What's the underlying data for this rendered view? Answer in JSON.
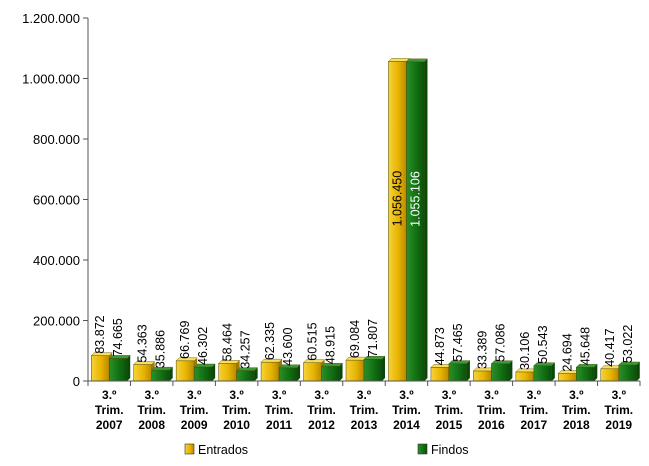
{
  "chart_data": {
    "type": "bar",
    "categories": [
      [
        "3.º",
        "Trim.",
        "2007"
      ],
      [
        "3.º",
        "Trim.",
        "2008"
      ],
      [
        "3.º",
        "Trim.",
        "2009"
      ],
      [
        "3.º",
        "Trim.",
        "2010"
      ],
      [
        "3.º",
        "Trim.",
        "2011"
      ],
      [
        "3.º",
        "Trim.",
        "2012"
      ],
      [
        "3.º",
        "Trim.",
        "2013"
      ],
      [
        "3.º",
        "Trim.",
        "2014"
      ],
      [
        "3.º",
        "Trim.",
        "2015"
      ],
      [
        "3.º",
        "Trim.",
        "2016"
      ],
      [
        "3.º",
        "Trim.",
        "2017"
      ],
      [
        "3.º",
        "Trim.",
        "2018"
      ],
      [
        "3.º",
        "Trim.",
        "2019"
      ]
    ],
    "series": [
      {
        "name": "Entrados",
        "color": "#e8b400",
        "values": [
          83872,
          54363,
          66769,
          58464,
          62335,
          60515,
          69084,
          1056450,
          44873,
          33389,
          30106,
          24694,
          40417
        ],
        "labels": [
          "83.872",
          "54.363",
          "66.769",
          "58.464",
          "62.335",
          "60.515",
          "69.084",
          "1.056.450",
          "44.873",
          "33.389",
          "30.106",
          "24.694",
          "40.417"
        ]
      },
      {
        "name": "Findos",
        "color": "#127012",
        "values": [
          74665,
          35886,
          46302,
          34257,
          43600,
          48915,
          71807,
          1055106,
          57465,
          57086,
          50543,
          45648,
          53022
        ],
        "labels": [
          "74.665",
          "35.886",
          "46.302",
          "34.257",
          "43.600",
          "48.915",
          "71.807",
          "1.055.106",
          "57.465",
          "57.086",
          "50.543",
          "45.648",
          "53.022"
        ]
      }
    ],
    "ylim": [
      0,
      1200000
    ],
    "y_ticks": [
      0,
      200000,
      400000,
      600000,
      800000,
      1000000,
      1200000
    ],
    "y_tick_labels": [
      "0",
      "200.000",
      "400.000",
      "600.000",
      "800.000",
      "1.000.000",
      "1.200.000"
    ],
    "legend_position": "bottom",
    "grid": false
  }
}
